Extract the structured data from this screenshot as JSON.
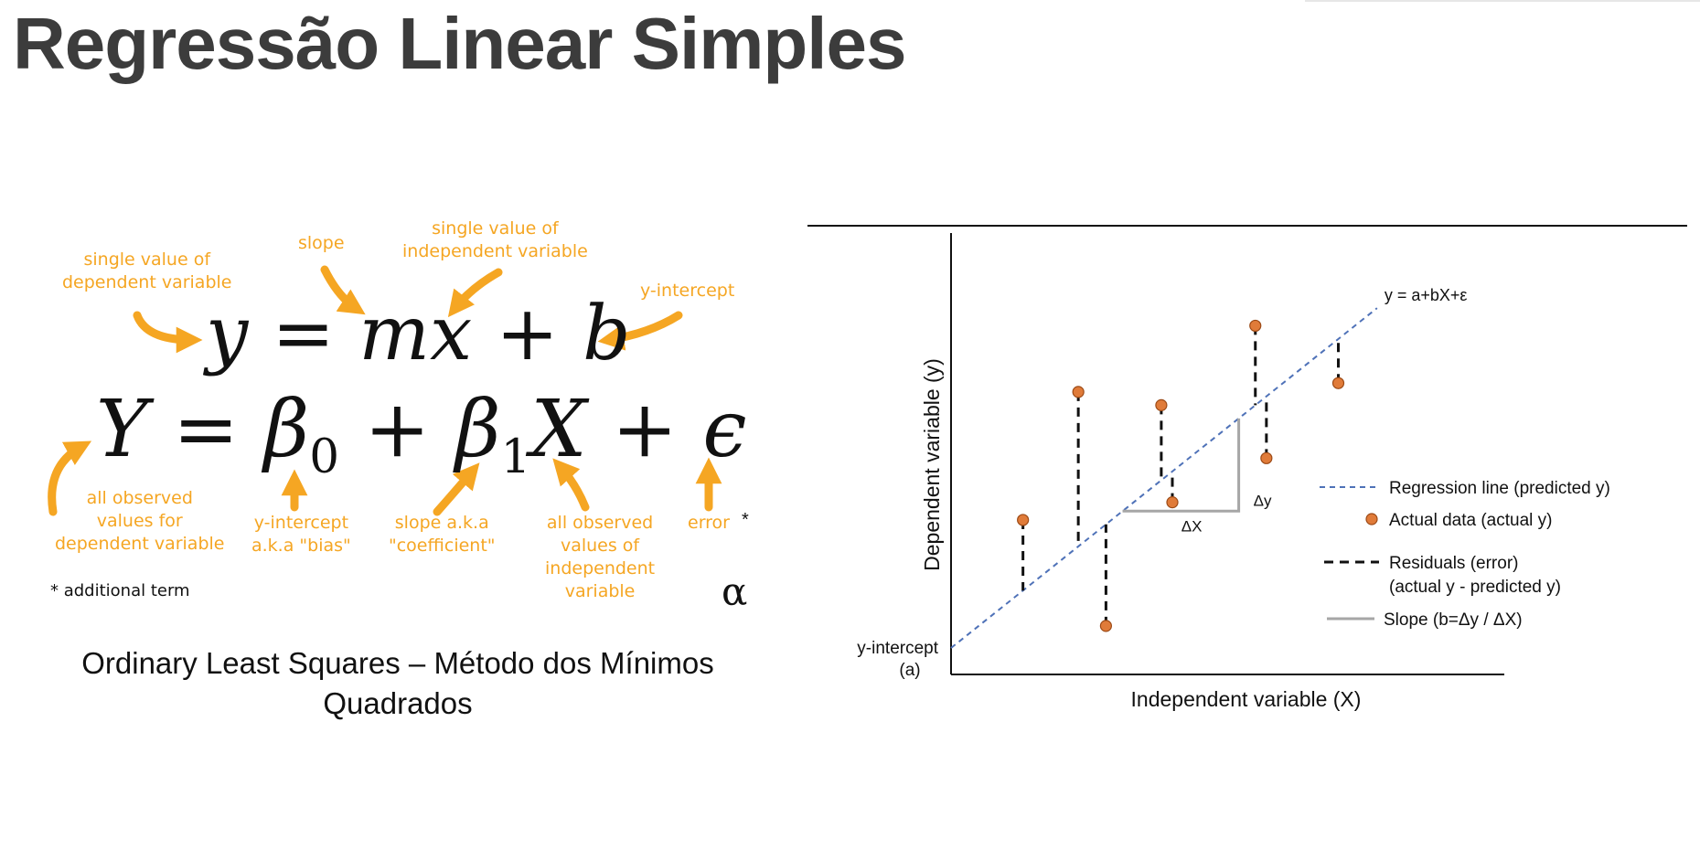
{
  "title": "Regressão Linear Simples",
  "left_figure": {
    "equation_1": {
      "lhs": "y",
      "eq": "=",
      "term": "mx",
      "plus": "+",
      "intercept": "b"
    },
    "equation_2": {
      "lhs": "Y",
      "eq": "=",
      "beta": "β",
      "sub0": "0",
      "plus": "+",
      "sub1": "1",
      "x": "X",
      "eps": "ϵ"
    },
    "annotations": {
      "single_dep": [
        "single value of",
        "dependent variable"
      ],
      "slope": [
        "slope"
      ],
      "single_indep": [
        "single value of",
        "independent variable"
      ],
      "y_intercept": [
        "y-intercept"
      ],
      "all_obs_dep": [
        "all observed",
        "values for",
        "dependent variable"
      ],
      "intercept_bias": [
        "y-intercept",
        "a.k.a \"bias\""
      ],
      "slope_coef": [
        "slope a.k.a",
        "\"coefficient\""
      ],
      "all_obs_indep": [
        "all observed",
        "values of",
        "independent",
        "variable"
      ],
      "error": [
        "error"
      ]
    },
    "error_star": "*",
    "additional_term_note": "* additional term",
    "alpha_symbol": "α",
    "colors": {
      "annotation": "#f5a623",
      "text": "#111111"
    }
  },
  "caption": [
    "Ordinary Least Squares – Método dos Mínimos",
    "Quadrados"
  ],
  "chart_data": {
    "type": "scatter",
    "title": "",
    "xlabel": "Independent variable (X)",
    "ylabel": "Dependent variable (y)",
    "xlim": [
      0,
      100
    ],
    "ylim": [
      0,
      100
    ],
    "regression_line": {
      "intercept": 6,
      "slope": 1.0,
      "x_range": [
        0,
        77
      ],
      "label": "y = a+bX+ε"
    },
    "points": [
      {
        "x": 13,
        "y": 35
      },
      {
        "x": 23,
        "y": 64
      },
      {
        "x": 28,
        "y": 11
      },
      {
        "x": 38,
        "y": 61
      },
      {
        "x": 40,
        "y": 39
      },
      {
        "x": 55,
        "y": 79
      },
      {
        "x": 57,
        "y": 49
      },
      {
        "x": 70,
        "y": 66
      }
    ],
    "slope_triangle": {
      "x0": 31,
      "x1": 52,
      "dx_label": "ΔX",
      "dy_label": "Δy"
    },
    "y_intercept_label": [
      "y-intercept",
      "(a)"
    ],
    "legend": [
      {
        "kind": "dashed-line",
        "label": "Regression line (predicted y)"
      },
      {
        "kind": "dot",
        "label": "Actual data (actual y)"
      },
      {
        "kind": "black-dashed",
        "label": "Residuals (error)",
        "label2": "(actual y - predicted y)"
      },
      {
        "kind": "gray-line",
        "label": "Slope (b=Δy / ΔX)"
      }
    ],
    "colors": {
      "regression": "#4f72b8",
      "points": "#e07b39",
      "point_edge": "#9c4a16",
      "residual": "#111111",
      "slope": "#a6a6a6",
      "axis": "#111111"
    }
  }
}
